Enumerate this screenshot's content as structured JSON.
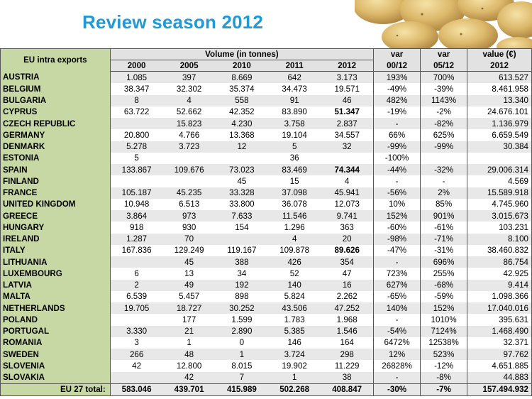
{
  "title": "Review season 2012",
  "table": {
    "corner_label": "EU intra exports",
    "volume_label": "Volume (in tonnes)",
    "var_label_1": "var",
    "var_label_2": "var",
    "value_label": "value (€)",
    "years": [
      "2000",
      "2005",
      "2010",
      "2011",
      "2012"
    ],
    "var_sub_1": "00/12",
    "var_sub_2": "05/12",
    "value_sub": "2012",
    "rows": [
      {
        "country": "AUSTRIA",
        "v": [
          "1.085",
          "397",
          "8.669",
          "642",
          "3.173"
        ],
        "var1": "193%",
        "var2": "700%",
        "value": "613.527"
      },
      {
        "country": "BELGIUM",
        "v": [
          "38.347",
          "32.302",
          "35.374",
          "34.473",
          "19.571"
        ],
        "var1": "-49%",
        "var2": "-39%",
        "value": "8.461.958"
      },
      {
        "country": "BULGARIA",
        "v": [
          "8",
          "4",
          "558",
          "91",
          "46"
        ],
        "var1": "482%",
        "var2": "1143%",
        "value": "13.340"
      },
      {
        "country": "CYPRUS",
        "v": [
          "63.722",
          "52.662",
          "42.352",
          "83.890",
          "51.347"
        ],
        "var1": "-19%",
        "var2": "-2%",
        "value": "24.676.101",
        "bold2012": true
      },
      {
        "country": "CZECH REPUBLIC",
        "v": [
          "",
          "15.823",
          "4.230",
          "3.758",
          "2.837"
        ],
        "var1": "-",
        "var2": "-82%",
        "value": "1.136.979"
      },
      {
        "country": "GERMANY",
        "v": [
          "20.800",
          "4.766",
          "13.368",
          "19.104",
          "34.557"
        ],
        "var1": "66%",
        "var2": "625%",
        "value": "6.659.549"
      },
      {
        "country": "DENMARK",
        "v": [
          "5.278",
          "3.723",
          "12",
          "5",
          "32"
        ],
        "var1": "-99%",
        "var2": "-99%",
        "value": "30.384"
      },
      {
        "country": "ESTONIA",
        "v": [
          "5",
          "",
          "",
          "36",
          ""
        ],
        "var1": "-100%",
        "var2": "",
        "value": ""
      },
      {
        "country": "SPAIN",
        "v": [
          "133.867",
          "109.676",
          "73.023",
          "83.469",
          "74.344"
        ],
        "var1": "-44%",
        "var2": "-32%",
        "value": "29.006.314",
        "bold2012": true
      },
      {
        "country": "FINLAND",
        "v": [
          "",
          "",
          "45",
          "15",
          "4"
        ],
        "var1": "-",
        "var2": "-",
        "value": "4.569"
      },
      {
        "country": "FRANCE",
        "v": [
          "105.187",
          "45.235",
          "33.328",
          "37.098",
          "45.941"
        ],
        "var1": "-56%",
        "var2": "2%",
        "value": "15.589.918"
      },
      {
        "country": "UNITED KINGDOM",
        "v": [
          "10.948",
          "6.513",
          "33.800",
          "36.078",
          "12.073"
        ],
        "var1": "10%",
        "var2": "85%",
        "value": "4.745.960"
      },
      {
        "country": "GREECE",
        "v": [
          "3.864",
          "973",
          "7.633",
          "11.546",
          "9.741"
        ],
        "var1": "152%",
        "var2": "901%",
        "value": "3.015.673"
      },
      {
        "country": "HUNGARY",
        "v": [
          "918",
          "930",
          "154",
          "1.296",
          "363"
        ],
        "var1": "-60%",
        "var2": "-61%",
        "value": "103.231"
      },
      {
        "country": "IRELAND",
        "v": [
          "1.287",
          "70",
          "",
          "4",
          "20"
        ],
        "var1": "-98%",
        "var2": "-71%",
        "value": "8.100"
      },
      {
        "country": "ITALY",
        "v": [
          "167.836",
          "129.249",
          "119.167",
          "109.878",
          "89.626"
        ],
        "var1": "-47%",
        "var2": "-31%",
        "value": "38.460.832",
        "bold2012": true
      },
      {
        "country": "LITHUANIA",
        "v": [
          "",
          "45",
          "388",
          "426",
          "354"
        ],
        "var1": "-",
        "var2": "696%",
        "value": "86.754"
      },
      {
        "country": "LUXEMBOURG",
        "v": [
          "6",
          "13",
          "34",
          "52",
          "47"
        ],
        "var1": "723%",
        "var2": "255%",
        "value": "42.925"
      },
      {
        "country": "LATVIA",
        "v": [
          "2",
          "49",
          "192",
          "140",
          "16"
        ],
        "var1": "627%",
        "var2": "-68%",
        "value": "9.414"
      },
      {
        "country": "MALTA",
        "v": [
          "6.539",
          "5.457",
          "898",
          "5.824",
          "2.262"
        ],
        "var1": "-65%",
        "var2": "-59%",
        "value": "1.098.366"
      },
      {
        "country": "NETHERLANDS",
        "v": [
          "19.705",
          "18.727",
          "30.252",
          "43.506",
          "47.252"
        ],
        "var1": "140%",
        "var2": "152%",
        "value": "17.040.016"
      },
      {
        "country": "POLAND",
        "v": [
          "",
          "177",
          "1.599",
          "1.783",
          "1.968"
        ],
        "var1": "-",
        "var2": "1010%",
        "value": "395.631"
      },
      {
        "country": "PORTUGAL",
        "v": [
          "3.330",
          "21",
          "2.890",
          "5.385",
          "1.546"
        ],
        "var1": "-54%",
        "var2": "7124%",
        "value": "1.468.490"
      },
      {
        "country": "ROMANIA",
        "v": [
          "3",
          "1",
          "0",
          "146",
          "164"
        ],
        "var1": "6472%",
        "var2": "12538%",
        "value": "32.371"
      },
      {
        "country": "SWEDEN",
        "v": [
          "266",
          "48",
          "1",
          "3.724",
          "298"
        ],
        "var1": "12%",
        "var2": "523%",
        "value": "97.762"
      },
      {
        "country": "SLOVENIA",
        "v": [
          "42",
          "12.800",
          "8.015",
          "19.902",
          "11.229"
        ],
        "var1": "26828%",
        "var2": "-12%",
        "value": "4.651.885"
      },
      {
        "country": "SLOVAKIA",
        "v": [
          "",
          "42",
          "7",
          "1",
          "38"
        ],
        "var1": "-",
        "var2": "-8%",
        "value": "44.883"
      }
    ],
    "total": {
      "country": "EU 27 total:",
      "v": [
        "583.046",
        "439.701",
        "415.989",
        "502.268",
        "408.847"
      ],
      "var1": "-30%",
      "var2": "-7%",
      "value": "157.494.932"
    }
  },
  "colors": {
    "title": "#1f9ad6",
    "country_column": "#c7d8a4",
    "row_shade": "#e8e8e8"
  }
}
